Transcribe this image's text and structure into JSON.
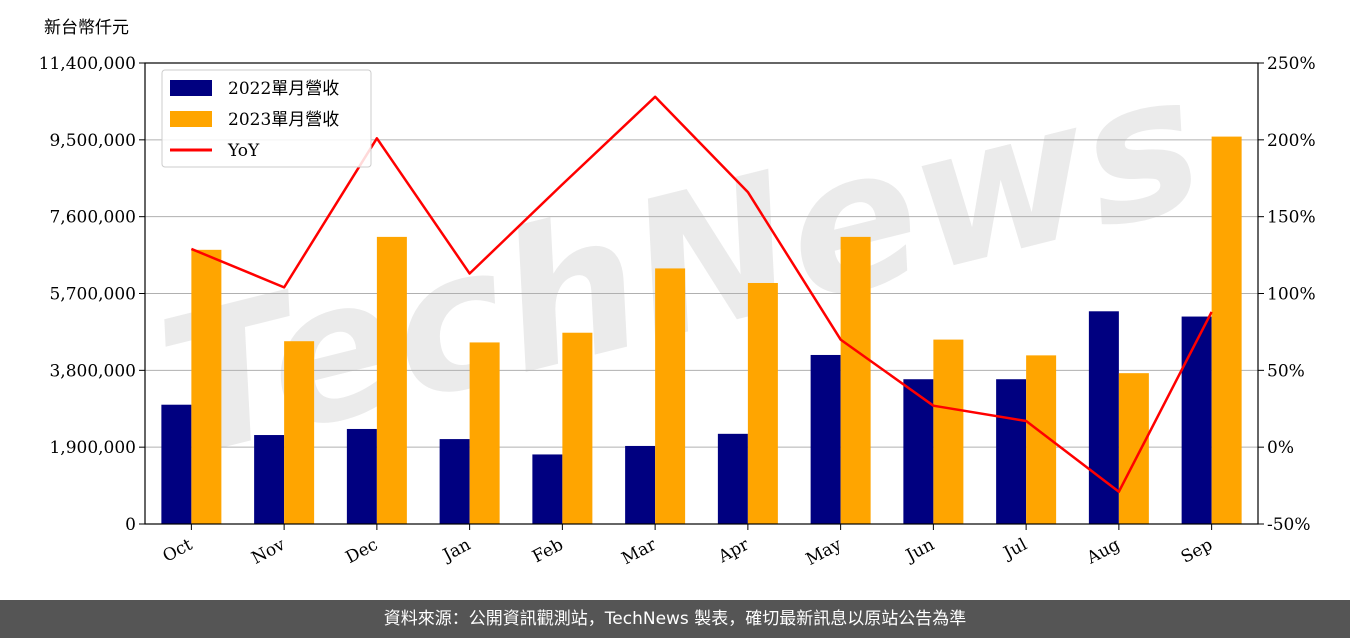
{
  "chart_data": {
    "type": "bar",
    "unit_label": "新台幣仟元",
    "categories": [
      "Oct",
      "Nov",
      "Dec",
      "Jan",
      "Feb",
      "Mar",
      "Apr",
      "May",
      "Jun",
      "Jul",
      "Aug",
      "Sep"
    ],
    "series": [
      {
        "name": "2022單月營收",
        "type": "bar",
        "axis": "left",
        "color": "#000080",
        "values": [
          2950000,
          2200000,
          2350000,
          2100000,
          1720000,
          1930000,
          2230000,
          4180000,
          3580000,
          3580000,
          5260000,
          5130000
        ]
      },
      {
        "name": "2023單月營收",
        "type": "bar",
        "axis": "left",
        "color": "#FFA500",
        "values": [
          6780000,
          4520000,
          7100000,
          4490000,
          4730000,
          6320000,
          5960000,
          7100000,
          4560000,
          4170000,
          3730000,
          9580000
        ]
      },
      {
        "name": "YoY",
        "type": "line",
        "axis": "right",
        "color": "#FF0000",
        "values": [
          129,
          104,
          201,
          113,
          171,
          228,
          166,
          70,
          27,
          17,
          -29,
          88
        ]
      }
    ],
    "y_left": {
      "min": 0,
      "max": 11400000,
      "ticks": [
        "0",
        "1,900,000",
        "3,800,000",
        "5,700,000",
        "7,600,000",
        "9,500,000",
        "11,400,000"
      ]
    },
    "y_right": {
      "min": -50,
      "max": 250,
      "ticks": [
        "-50%",
        "0%",
        "50%",
        "100%",
        "150%",
        "200%",
        "250%"
      ]
    },
    "grid": "horizontal",
    "legend_position": "top-left",
    "watermark": "TechNews"
  },
  "footer": {
    "source_text": "資料來源：公開資訊觀測站，TechNews 製表，確切最新訊息以原站公告為準"
  }
}
